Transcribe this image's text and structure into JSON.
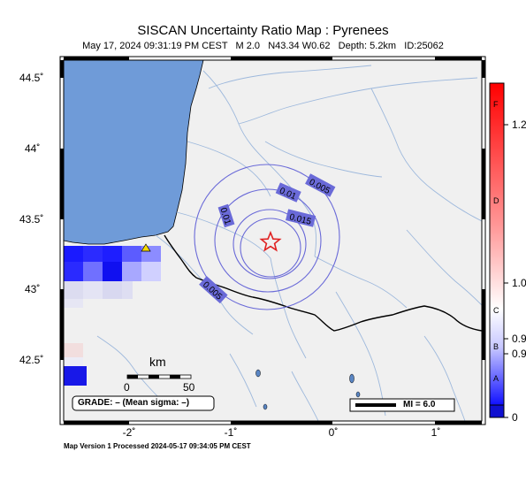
{
  "header": {
    "title": "SISCAN Uncertainty Ratio Map : Pyrenees",
    "subtitle": "May 17, 2024 09:31:19 PM CEST   M 2.0   N43.34 W0.62   Depth: 5.2km   ID:25062"
  },
  "axes": {
    "lat_labels": [
      "44.5˚",
      "44˚",
      "43.5˚",
      "43˚",
      "42.5˚"
    ],
    "lon_labels": [
      "-2˚",
      "-1˚",
      "0˚",
      "1˚"
    ]
  },
  "contours": {
    "labels": [
      "0.005",
      "0.01",
      "0.015",
      "0.01",
      "0.005"
    ]
  },
  "scale": {
    "unit": "km",
    "ticks": [
      "0",
      "50"
    ]
  },
  "grade_box": "GRADE: – (Mean sigma: –)",
  "mi_box": "MI = 6.0",
  "colorbar": {
    "grades": [
      "F",
      "D",
      "C",
      "B",
      "A"
    ],
    "ticks": [
      "1.2",
      "1.0",
      "0.9",
      "0.9",
      "0"
    ]
  },
  "footer": "Map Version 1 Processed 2024-05-17 09:34:05 PM CEST",
  "colors": {
    "ocean": "#6f9bd8",
    "land": "#f0f0f0",
    "river": "#9db8dc",
    "contour": "#6a6ad8",
    "epicenter": "#e02020",
    "station": "#f5d800"
  }
}
